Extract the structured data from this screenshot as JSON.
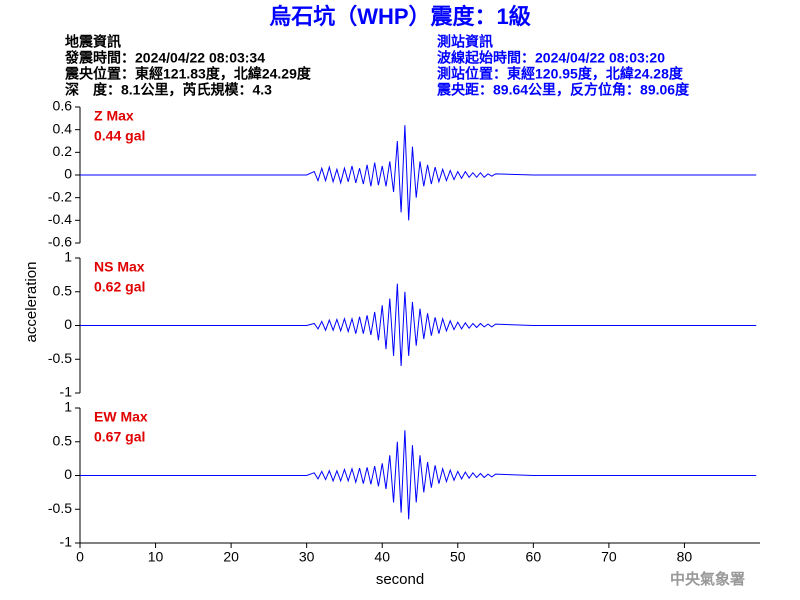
{
  "title": "烏石坑（WHP）震度：1級",
  "event_info": [
    "地震資訊",
    "發震時間：2024/04/22 08:03:34",
    "震央位置：東經121.83度，北緯24.29度",
    "深　度：8.1公里，芮氏規模：4.3"
  ],
  "station_info": [
    "測站資訊",
    "波線起始時間：2024/04/22 08:03:20",
    "測站位置：東經120.95度，北緯24.28度",
    "震央距：89.64公里，反方位角：89.06度"
  ],
  "ylabel": "acceleration",
  "footer": "中央氣象署",
  "xaxis": {
    "label": "second",
    "xlim": [
      0,
      90
    ],
    "xticks": [
      0,
      10,
      20,
      30,
      40,
      50,
      60,
      70,
      80
    ]
  },
  "chart_data": [
    {
      "type": "line",
      "annotations": [
        "Z Max",
        "0.44 gal"
      ],
      "color": "#0000ff",
      "ylim": [
        -0.6,
        0.6
      ],
      "yticks": [
        0.6,
        0.4,
        0.2,
        0,
        -0.2,
        -0.4,
        -0.6
      ],
      "x": [
        0,
        30,
        31,
        31.5,
        32,
        32.5,
        33,
        33.5,
        34,
        34.5,
        35,
        35.5,
        36,
        36.5,
        37,
        37.5,
        38,
        38.5,
        39,
        39.5,
        40,
        40.5,
        41,
        41.5,
        42,
        42.5,
        43,
        43.5,
        44,
        44.5,
        45,
        45.5,
        46,
        46.5,
        47,
        47.5,
        48,
        48.5,
        49,
        49.5,
        50,
        50.5,
        51,
        51.5,
        52,
        52.5,
        53,
        53.5,
        54,
        54.5,
        55,
        60,
        70,
        80,
        89.5
      ],
      "values": [
        0,
        0,
        0.03,
        -0.05,
        0.06,
        -0.05,
        0.07,
        -0.06,
        0.05,
        -0.07,
        0.06,
        -0.06,
        0.08,
        -0.07,
        0.06,
        -0.08,
        0.09,
        -0.1,
        0.11,
        -0.09,
        0.08,
        -0.1,
        0.12,
        -0.15,
        0.3,
        -0.33,
        0.44,
        -0.4,
        0.25,
        -0.2,
        0.12,
        -0.1,
        0.09,
        -0.08,
        0.07,
        -0.06,
        0.05,
        -0.05,
        0.04,
        -0.04,
        0.03,
        -0.03,
        0.03,
        -0.02,
        0.02,
        -0.02,
        0.02,
        -0.02,
        0.01,
        -0.01,
        0.01,
        0,
        0,
        0,
        0
      ]
    },
    {
      "type": "line",
      "annotations": [
        "NS Max",
        "0.62 gal"
      ],
      "color": "#0000ff",
      "ylim": [
        -1,
        1
      ],
      "yticks": [
        1,
        0.5,
        0,
        -0.5,
        -1
      ],
      "x": [
        0,
        30,
        31,
        31.5,
        32,
        32.5,
        33,
        33.5,
        34,
        34.5,
        35,
        35.5,
        36,
        36.5,
        37,
        37.5,
        38,
        38.5,
        39,
        39.5,
        40,
        40.5,
        41,
        41.5,
        42,
        42.5,
        43,
        43.5,
        44,
        44.5,
        45,
        45.5,
        46,
        46.5,
        47,
        47.5,
        48,
        48.5,
        49,
        49.5,
        50,
        50.5,
        51,
        51.5,
        52,
        52.5,
        53,
        53.5,
        54,
        54.5,
        55,
        60,
        70,
        80,
        89.5
      ],
      "values": [
        0,
        0,
        0.03,
        -0.05,
        0.06,
        -0.07,
        0.08,
        -0.07,
        0.09,
        -0.08,
        0.1,
        -0.09,
        0.1,
        -0.12,
        0.13,
        -0.12,
        0.15,
        -0.14,
        0.2,
        -0.22,
        0.3,
        -0.35,
        0.4,
        -0.45,
        0.62,
        -0.6,
        0.5,
        -0.45,
        0.35,
        -0.3,
        0.25,
        -0.2,
        0.18,
        -0.15,
        0.12,
        -0.12,
        0.1,
        -0.08,
        0.07,
        -0.06,
        0.05,
        -0.05,
        0.04,
        -0.04,
        0.03,
        -0.03,
        0.03,
        -0.02,
        0.02,
        -0.02,
        0.02,
        0,
        0,
        0,
        0
      ]
    },
    {
      "type": "line",
      "annotations": [
        "EW Max",
        "0.67 gal"
      ],
      "color": "#0000ff",
      "ylim": [
        -1,
        1
      ],
      "yticks": [
        1,
        0.5,
        0,
        -0.5,
        -1
      ],
      "x": [
        0,
        30,
        31,
        31.5,
        32,
        32.5,
        33,
        33.5,
        34,
        34.5,
        35,
        35.5,
        36,
        36.5,
        37,
        37.5,
        38,
        38.5,
        39,
        39.5,
        40,
        40.5,
        41,
        41.5,
        42,
        42.5,
        43,
        43.5,
        44,
        44.5,
        45,
        45.5,
        46,
        46.5,
        47,
        47.5,
        48,
        48.5,
        49,
        49.5,
        50,
        50.5,
        51,
        51.5,
        52,
        52.5,
        53,
        53.5,
        54,
        54.5,
        55,
        60,
        70,
        80,
        89.5
      ],
      "values": [
        0,
        0,
        0.04,
        -0.05,
        0.06,
        -0.06,
        0.07,
        -0.08,
        0.07,
        -0.08,
        0.09,
        -0.08,
        0.1,
        -0.1,
        0.11,
        -0.12,
        0.12,
        -0.13,
        0.14,
        -0.16,
        0.18,
        -0.2,
        0.3,
        -0.4,
        0.5,
        -0.55,
        0.67,
        -0.65,
        0.45,
        -0.4,
        0.3,
        -0.25,
        0.2,
        -0.18,
        0.15,
        -0.12,
        0.1,
        -0.09,
        0.08,
        -0.07,
        0.06,
        -0.05,
        0.05,
        -0.04,
        0.04,
        -0.03,
        0.03,
        -0.03,
        0.02,
        -0.02,
        0.02,
        0,
        0,
        0,
        0
      ]
    }
  ]
}
